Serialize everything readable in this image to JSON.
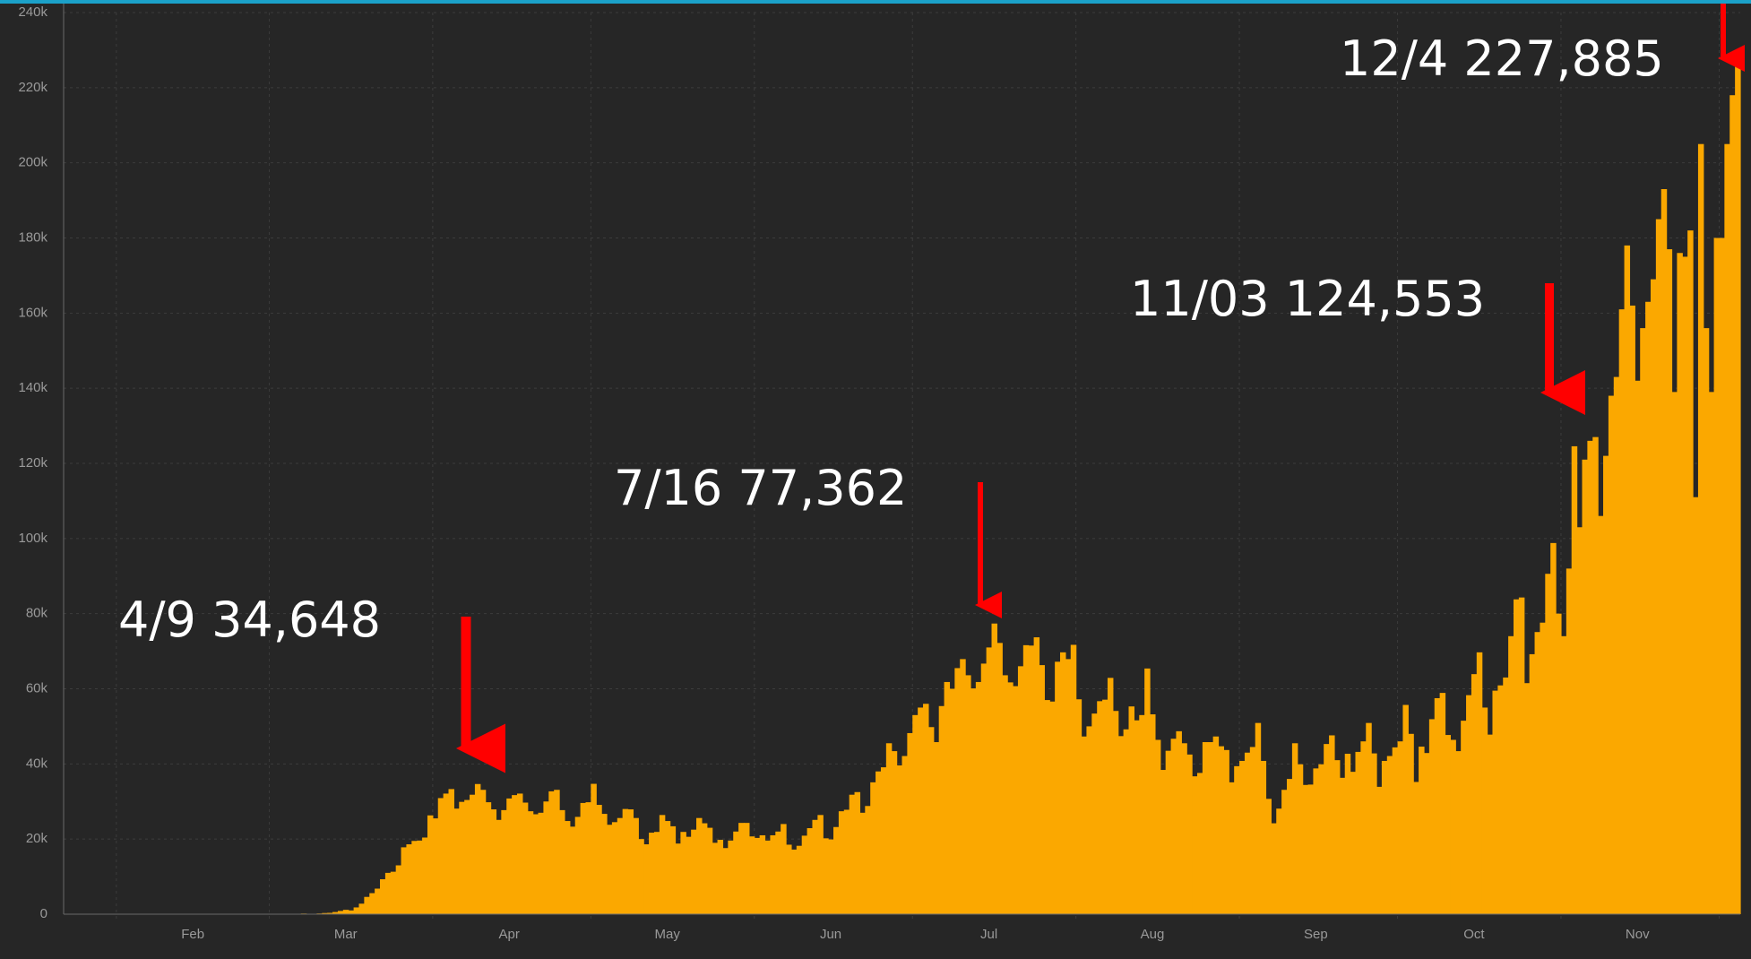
{
  "chart_data": {
    "type": "bar",
    "color": "#fba800",
    "grid": true,
    "ylim": [
      0,
      240000
    ],
    "yticks": [
      0,
      {
        "value": 20000,
        "label": "20k"
      },
      {
        "value": 40000,
        "label": "40k"
      },
      {
        "value": 60000,
        "label": "60k"
      },
      {
        "value": 80000,
        "label": "80k"
      },
      {
        "value": 100000,
        "label": "100k"
      },
      {
        "value": 120000,
        "label": "120k"
      },
      {
        "value": 140000,
        "label": "140k"
      },
      {
        "value": 160000,
        "label": "160k"
      },
      {
        "value": 180000,
        "label": "180k"
      },
      {
        "value": 200000,
        "label": "200k"
      },
      {
        "value": 220000,
        "label": "220k"
      },
      {
        "value": 240000,
        "label": "240k"
      }
    ],
    "annotations": [
      "4/9 34,648",
      "7/16 77,362",
      "11/03 124,553",
      "12/4 227,885"
    ],
    "categories": [
      null,
      null,
      null,
      null,
      null,
      null,
      null,
      null,
      null,
      null,
      null,
      null,
      null,
      null,
      null,
      null,
      null,
      null,
      null,
      null,
      null,
      null,
      null,
      null,
      "Feb",
      null,
      null,
      null,
      null,
      null,
      null,
      null,
      null,
      null,
      null,
      null,
      null,
      null,
      null,
      null,
      null,
      null,
      null,
      null,
      null,
      null,
      null,
      null,
      null,
      null,
      null,
      null,
      null,
      "Mar",
      null,
      null,
      null,
      null,
      null,
      null,
      null,
      null,
      null,
      null,
      null,
      null,
      null,
      null,
      null,
      null,
      null,
      null,
      null,
      null,
      null,
      null,
      null,
      null,
      null,
      null,
      null,
      null,
      null,
      null,
      "Apr",
      null,
      null,
      null,
      null,
      null,
      null,
      null,
      null,
      null,
      null,
      null,
      null,
      null,
      null,
      null,
      null,
      null,
      null,
      null,
      null,
      null,
      null,
      null,
      null,
      null,
      null,
      null,
      null,
      null,
      "May",
      null,
      null,
      null,
      null,
      null,
      null,
      null,
      null,
      null,
      null,
      null,
      null,
      null,
      null,
      null,
      null,
      null,
      null,
      null,
      null,
      null,
      null,
      null,
      null,
      null,
      null,
      null,
      null,
      null,
      null,
      "Jun",
      null,
      null,
      null,
      null,
      null,
      null,
      null,
      null,
      null,
      null,
      null,
      null,
      null,
      null,
      null,
      null,
      null,
      null,
      null,
      null,
      null,
      null,
      null,
      null,
      null,
      null,
      null,
      null,
      null,
      "Jul",
      null,
      null,
      null,
      null,
      null,
      null,
      null,
      null,
      null,
      null,
      null,
      null,
      null,
      null,
      null,
      null,
      null,
      null,
      null,
      null,
      null,
      null,
      null,
      null,
      null,
      null,
      null,
      null,
      null,
      null,
      "Aug",
      null,
      null,
      null,
      null,
      null,
      null,
      null,
      null,
      null,
      null,
      null,
      null,
      null,
      null,
      null,
      null,
      null,
      null,
      null,
      null,
      null,
      null,
      null,
      null,
      null,
      null,
      null,
      null,
      null,
      null,
      "Sep",
      null,
      null,
      null,
      null,
      null,
      null,
      null,
      null,
      null,
      null,
      null,
      null,
      null,
      null,
      null,
      null,
      null,
      null,
      null,
      null,
      null,
      null,
      null,
      null,
      null,
      null,
      null,
      null,
      null,
      "Oct",
      null,
      null,
      null,
      null,
      null,
      null,
      null,
      null,
      null,
      null,
      null,
      null,
      null,
      null,
      null,
      null,
      null,
      null,
      null,
      null,
      null,
      null,
      null,
      null,
      null,
      null,
      null,
      null,
      null,
      null,
      "Nov",
      null,
      null,
      null,
      null,
      null,
      null,
      null,
      null,
      null,
      null,
      null,
      null,
      null,
      null,
      null,
      null,
      null,
      null,
      null
    ],
    "values": [
      1,
      0,
      1,
      0,
      3,
      0,
      0,
      0,
      2,
      1,
      0,
      2,
      0,
      0,
      0,
      0,
      0,
      0,
      0,
      1,
      0,
      1,
      0,
      0,
      0,
      0,
      0,
      0,
      0,
      0,
      0,
      0,
      0,
      0,
      0,
      0,
      0,
      1,
      5,
      7,
      23,
      19,
      33,
      77,
      53,
      166,
      116,
      75,
      187,
      303,
      353,
      577,
      866,
      1160,
      1000,
      1800,
      2800,
      4600,
      5600,
      6800,
      9300,
      11000,
      11300,
      13000,
      17800,
      18600,
      19500,
      19600,
      20400,
      26300,
      25500,
      30900,
      32100,
      33300,
      28100,
      29900,
      30400,
      31800,
      34648,
      33100,
      29800,
      27900,
      25100,
      27700,
      30800,
      31700,
      32100,
      29700,
      27400,
      26600,
      27000,
      30000,
      32700,
      33100,
      27700,
      24800,
      23300,
      25900,
      29600,
      29800,
      34700,
      29100,
      26700,
      23800,
      24500,
      25600,
      28000,
      27900,
      25600,
      20000,
      18600,
      21700,
      21900,
      26400,
      24800,
      23400,
      18800,
      21900,
      20600,
      22500,
      25600,
      24200,
      23000,
      19000,
      19800,
      17600,
      19600,
      22000,
      24300,
      24300,
      20700,
      20300,
      21000,
      19600,
      21000,
      22000,
      24000,
      18500,
      17200,
      18200,
      20900,
      22900,
      25100,
      26400,
      20200,
      19900,
      23200,
      27400,
      27800,
      31800,
      32500,
      27000,
      28800,
      35100,
      38000,
      39100,
      45500,
      43400,
      39600,
      42100,
      48200,
      53000,
      55000,
      56000,
      49800,
      45800,
      55400,
      61800,
      60000,
      65500,
      67900,
      63600,
      60100,
      61800,
      66700,
      71000,
      77362,
      72200,
      63600,
      61700,
      60700,
      66000,
      71600,
      71500,
      73700,
      66300,
      57000,
      56600,
      67200,
      69700,
      67900,
      71700,
      57200,
      47300,
      50000,
      53400,
      56700,
      57100,
      62900,
      54100,
      47400,
      49200,
      55300,
      51600,
      53000,
      65400,
      53200,
      46400,
      38400,
      43500,
      46700,
      48700,
      45500,
      42500,
      36700,
      37600,
      45800,
      45800,
      47300,
      44700,
      43700,
      35100,
      39400,
      40800,
      43000,
      44500,
      50900,
      40800,
      30700,
      24200,
      28100,
      33100,
      36000,
      45500,
      39900,
      34400,
      34500,
      38800,
      39900,
      45300,
      47600,
      41000,
      36300,
      42700,
      37900,
      43200,
      46000,
      50900,
      42800,
      33900,
      40800,
      42100,
      44400,
      46000,
      55700,
      48000,
      35200,
      44600,
      42900,
      51900,
      57500,
      58900,
      47700,
      46400,
      43400,
      51500,
      58300,
      63900,
      69700,
      55000,
      47800,
      59500,
      60900,
      63000,
      74000,
      83800,
      84300,
      61500,
      69200,
      75100,
      77600,
      90600,
      98800,
      80000,
      74000,
      92000,
      124553,
      103000,
      121000,
      126000,
      127000,
      106000,
      122000,
      138000,
      143000,
      161000,
      178000,
      162000,
      142000,
      156000,
      163000,
      169000,
      185000,
      193000,
      177000,
      139000,
      176000,
      175000,
      182000,
      111000,
      205000,
      156000,
      139000,
      180000,
      180000,
      205000,
      218000,
      227885
    ]
  }
}
